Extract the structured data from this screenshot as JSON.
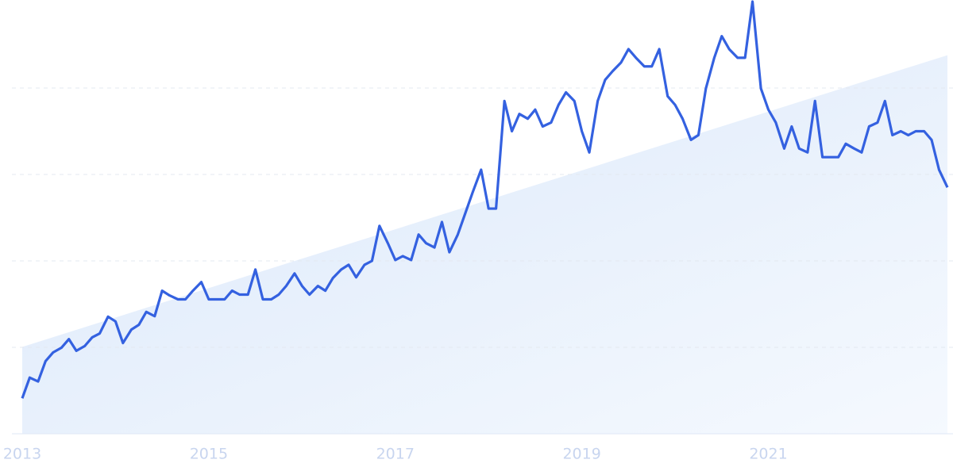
{
  "chart_data": {
    "type": "line",
    "x": [
      2013.0,
      2013.08,
      2013.17,
      2013.25,
      2013.33,
      2013.42,
      2013.5,
      2013.58,
      2013.67,
      2013.75,
      2013.83,
      2013.92,
      2014.0,
      2014.08,
      2014.17,
      2014.25,
      2014.33,
      2014.42,
      2014.5,
      2014.58,
      2014.67,
      2014.75,
      2014.83,
      2014.92,
      2015.0,
      2015.08,
      2015.17,
      2015.25,
      2015.33,
      2015.42,
      2015.5,
      2015.58,
      2015.67,
      2015.75,
      2015.83,
      2015.92,
      2016.0,
      2016.08,
      2016.17,
      2016.25,
      2016.33,
      2016.42,
      2016.5,
      2016.58,
      2016.67,
      2016.75,
      2016.83,
      2016.92,
      2017.0,
      2017.08,
      2017.17,
      2017.25,
      2017.33,
      2017.42,
      2017.5,
      2017.58,
      2017.67,
      2017.75,
      2017.83,
      2017.92,
      2018.0,
      2018.08,
      2018.17,
      2018.25,
      2018.33,
      2018.42,
      2018.5,
      2018.58,
      2018.67,
      2018.75,
      2018.83,
      2018.92,
      2019.0,
      2019.08,
      2019.17,
      2019.25,
      2019.33,
      2019.42,
      2019.5,
      2019.58,
      2019.67,
      2019.75,
      2019.83,
      2019.92,
      2020.0,
      2020.08,
      2020.17,
      2020.25,
      2020.33,
      2020.42,
      2020.5,
      2020.58,
      2020.67,
      2020.75,
      2020.83,
      2020.92,
      2021.0,
      2021.08,
      2021.17,
      2021.25,
      2021.33,
      2021.42,
      2021.5,
      2021.58,
      2021.67,
      2021.75,
      2021.83,
      2021.92,
      2022.0,
      2022.08,
      2022.17,
      2022.25,
      2022.33,
      2022.42,
      2022.5,
      2022.58,
      2022.67,
      2022.75,
      2022.83,
      2022.92
    ],
    "series": [
      {
        "color": "#3461e0",
        "values": [
          8.2,
          13.0,
          12.1,
          16.8,
          18.8,
          19.9,
          21.9,
          19.2,
          20.3,
          22.3,
          23.2,
          27.1,
          26.0,
          21.0,
          24.1,
          25.2,
          28.2,
          27.2,
          33.1,
          32.0,
          31.1,
          31.1,
          33.1,
          35.1,
          31.1,
          31.1,
          31.1,
          33.1,
          32.2,
          32.2,
          38.0,
          31.1,
          31.1,
          32.2,
          34.2,
          37.1,
          34.2,
          32.2,
          34.2,
          33.1,
          36.0,
          38.0,
          39.1,
          36.2,
          39.1,
          40.0,
          48.1,
          44.1,
          40.2,
          41.1,
          40.2,
          46.1,
          44.1,
          43.1,
          49.0,
          42.0,
          46.1,
          51.0,
          55.9,
          61.1,
          52.1,
          52.1,
          77.0,
          70.0,
          74.0,
          72.9,
          75.0,
          71.1,
          72.0,
          76.1,
          79.0,
          77.0,
          70.0,
          65.1,
          77.0,
          81.9,
          83.9,
          85.9,
          89.0,
          87.0,
          85.0,
          85.0,
          89.0,
          78.1,
          76.1,
          72.9,
          68.0,
          69.1,
          79.9,
          87.0,
          92.0,
          89.0,
          87.0,
          87.0,
          100.0,
          79.9,
          75.0,
          72.0,
          66.0,
          71.1,
          66.0,
          65.1,
          77.0,
          64.0,
          64.0,
          64.0,
          67.1,
          66.0,
          65.1,
          71.1,
          72.0,
          77.0,
          69.1,
          70.0,
          69.1,
          70.0,
          70.0,
          68.0,
          61.1,
          57.0
        ]
      }
    ],
    "trend": {
      "x": [
        2013.0,
        2022.92
      ],
      "values": [
        20.1,
        87.6
      ],
      "color": "#dce9fb"
    },
    "xlim": [
      2013.0,
      2022.92
    ],
    "xticks": [
      2013,
      2015,
      2017,
      2019,
      2021
    ],
    "ylim": [
      0,
      100
    ],
    "yticks": [
      0,
      20,
      40,
      60,
      80
    ],
    "grid": true
  }
}
